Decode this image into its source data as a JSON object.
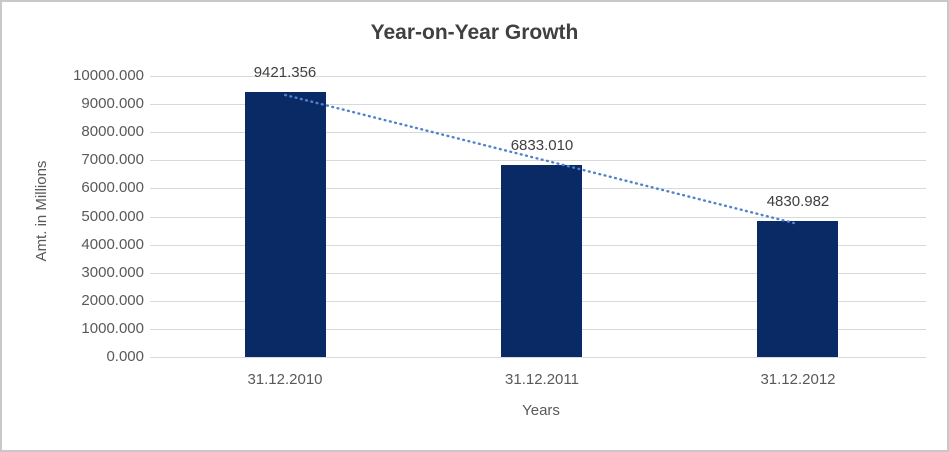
{
  "chart_data": {
    "type": "bar",
    "title": "Year-on-Year Growth",
    "xlabel": "Years",
    "ylabel": "Amt. in Millions",
    "categories": [
      "31.12.2010",
      "31.12.2011",
      "31.12.2012"
    ],
    "values": [
      9421.356,
      6833.01,
      4830.982
    ],
    "data_labels": [
      "9421.356",
      "6833.010",
      "4830.982"
    ],
    "ylim": [
      0,
      10000
    ],
    "ytick_step": 1000,
    "ytick_labels": [
      "0.000",
      "1000.000",
      "2000.000",
      "3000.000",
      "4000.000",
      "5000.000",
      "6000.000",
      "7000.000",
      "8000.000",
      "9000.000",
      "10000.000"
    ],
    "grid": true,
    "legend": "none",
    "trendline": {
      "type": "linear",
      "style": "dotted",
      "color": "#4e82cc"
    },
    "colors": {
      "bar": "#0a2a66",
      "gridline": "#d9d9d9",
      "title_text": "#404040",
      "axis_text": "#595959",
      "data_label_text": "#404040",
      "border": "#c8c8c8",
      "background": "#ffffff"
    }
  }
}
